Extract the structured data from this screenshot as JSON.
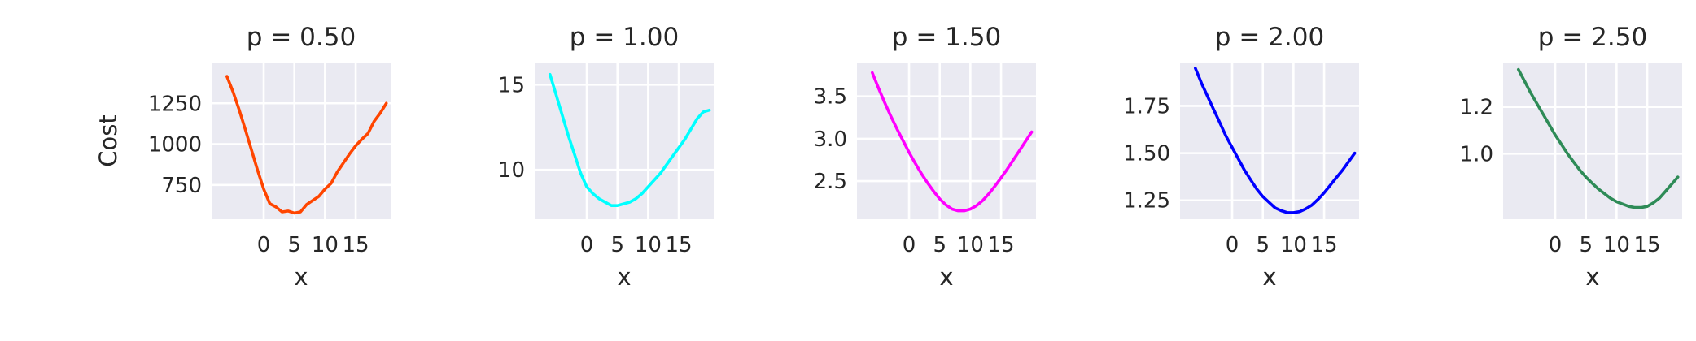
{
  "chart_data": [
    {
      "type": "line",
      "title": "p = 0.50",
      "xlabel": "x",
      "ylabel": "Cost",
      "color": "#ff4500",
      "xlim": [
        -8.5,
        20.7
      ],
      "ylim": [
        540,
        1500
      ],
      "xticks": [
        0,
        5,
        10,
        15
      ],
      "yticks": [
        750,
        1000,
        1250
      ],
      "ytick_labels": [
        "750",
        "1000",
        "1250"
      ],
      "x": [
        -6,
        -5,
        -4,
        -3,
        -2,
        -1,
        0,
        1,
        2,
        3,
        4,
        5,
        6,
        7,
        8,
        9,
        10,
        11,
        12,
        13,
        14,
        15,
        16,
        17,
        18,
        19,
        20
      ],
      "y": [
        1415,
        1320,
        1210,
        1090,
        965,
        840,
        725,
        635,
        615,
        585,
        590,
        578,
        585,
        630,
        655,
        680,
        725,
        760,
        830,
        885,
        940,
        990,
        1030,
        1065,
        1140,
        1190,
        1250
      ]
    },
    {
      "type": "line",
      "title": "p = 1.00",
      "xlabel": "x",
      "ylabel": "",
      "color": "#00ffff",
      "xlim": [
        -8.5,
        20.7
      ],
      "ylim": [
        7.1,
        16.3
      ],
      "xticks": [
        0,
        5,
        10,
        15
      ],
      "yticks": [
        10,
        15
      ],
      "ytick_labels": [
        "10",
        "15"
      ],
      "x": [
        -6,
        -5,
        -4,
        -3,
        -2,
        -1,
        0,
        1,
        2,
        3,
        4,
        5,
        6,
        7,
        8,
        9,
        10,
        11,
        12,
        13,
        14,
        15,
        16,
        17,
        18,
        19,
        20
      ],
      "y": [
        15.6,
        14.4,
        13.2,
        12.0,
        10.9,
        9.8,
        9.0,
        8.6,
        8.3,
        8.1,
        7.9,
        7.9,
        8.0,
        8.1,
        8.3,
        8.6,
        9.0,
        9.4,
        9.8,
        10.3,
        10.8,
        11.3,
        11.8,
        12.4,
        13.0,
        13.4,
        13.5
      ]
    },
    {
      "type": "line",
      "title": "p = 1.50",
      "xlabel": "x",
      "ylabel": "",
      "color": "#ff00ff",
      "xlim": [
        -8.5,
        20.7
      ],
      "ylim": [
        2.05,
        3.9
      ],
      "xticks": [
        0,
        5,
        10,
        15
      ],
      "yticks": [
        2.5,
        3.0,
        3.5
      ],
      "ytick_labels": [
        "2.5",
        "3.0",
        "3.5"
      ],
      "x": [
        -6,
        -5,
        -4,
        -3,
        -2,
        -1,
        0,
        1,
        2,
        3,
        4,
        5,
        6,
        7,
        8,
        9,
        10,
        11,
        12,
        13,
        14,
        15,
        16,
        17,
        18,
        19,
        20
      ],
      "y": [
        3.78,
        3.6,
        3.43,
        3.27,
        3.12,
        2.98,
        2.84,
        2.71,
        2.59,
        2.48,
        2.38,
        2.29,
        2.22,
        2.17,
        2.15,
        2.15,
        2.17,
        2.21,
        2.27,
        2.35,
        2.44,
        2.54,
        2.64,
        2.75,
        2.86,
        2.97,
        3.08
      ]
    },
    {
      "type": "line",
      "title": "p = 2.00",
      "xlabel": "x",
      "ylabel": "",
      "color": "#0000ff",
      "xlim": [
        -8.5,
        20.7
      ],
      "ylim": [
        1.15,
        1.98
      ],
      "xticks": [
        0,
        5,
        10,
        15
      ],
      "yticks": [
        1.25,
        1.5,
        1.75
      ],
      "ytick_labels": [
        "1.25",
        "1.50",
        "1.75"
      ],
      "x": [
        -6,
        -5,
        -4,
        -3,
        -2,
        -1,
        0,
        1,
        2,
        3,
        4,
        5,
        6,
        7,
        8,
        9,
        10,
        11,
        12,
        13,
        14,
        15,
        16,
        17,
        18,
        19,
        20
      ],
      "y": [
        1.95,
        1.87,
        1.8,
        1.73,
        1.66,
        1.59,
        1.53,
        1.47,
        1.41,
        1.36,
        1.31,
        1.27,
        1.24,
        1.21,
        1.195,
        1.185,
        1.185,
        1.19,
        1.205,
        1.225,
        1.255,
        1.29,
        1.33,
        1.37,
        1.41,
        1.455,
        1.5
      ]
    },
    {
      "type": "line",
      "title": "p = 2.50",
      "xlabel": "x",
      "ylabel": "",
      "color": "#2e8b57",
      "xlim": [
        -8.5,
        20.7
      ],
      "ylim": [
        0.72,
        1.39
      ],
      "xticks": [
        0,
        5,
        10,
        15
      ],
      "yticks": [
        1.0,
        1.2
      ],
      "ytick_labels": [
        "1.0",
        "1.2"
      ],
      "x": [
        -6,
        -5,
        -4,
        -3,
        -2,
        -1,
        0,
        1,
        2,
        3,
        4,
        5,
        6,
        7,
        8,
        9,
        10,
        11,
        12,
        13,
        14,
        15,
        16,
        17,
        18,
        19,
        20
      ],
      "y": [
        1.36,
        1.31,
        1.26,
        1.215,
        1.17,
        1.125,
        1.08,
        1.04,
        1.0,
        0.965,
        0.93,
        0.9,
        0.875,
        0.85,
        0.83,
        0.81,
        0.795,
        0.785,
        0.775,
        0.77,
        0.77,
        0.775,
        0.79,
        0.81,
        0.84,
        0.87,
        0.9
      ]
    }
  ]
}
